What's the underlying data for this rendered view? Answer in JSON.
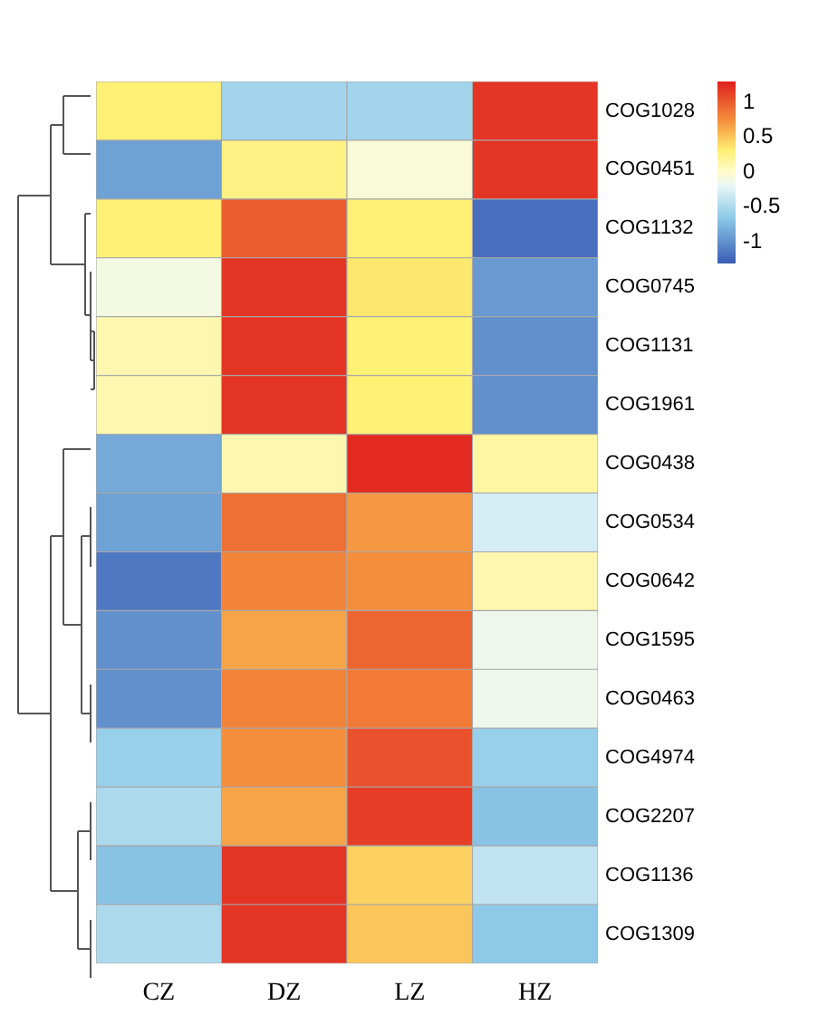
{
  "chart_data": {
    "type": "heatmap",
    "categories": [
      "CZ",
      "DZ",
      "LZ",
      "HZ"
    ],
    "y_categories": [
      "COG1028",
      "COG0451",
      "COG1132",
      "COG0745",
      "COG1131",
      "COG1961",
      "COG0438",
      "COG0534",
      "COG0642",
      "COG1595",
      "COG0463",
      "COG4974",
      "COG2207",
      "COG1136",
      "COG1309"
    ],
    "cells": [
      [
        0.3,
        -0.55,
        -0.55,
        1.2
      ],
      [
        -0.9,
        0.25,
        -0.05,
        1.2
      ],
      [
        0.3,
        1.0,
        0.3,
        -1.2
      ],
      [
        -0.1,
        1.2,
        0.35,
        -0.95
      ],
      [
        0.1,
        1.2,
        0.3,
        -1.0
      ],
      [
        0.1,
        1.2,
        0.3,
        -1.0
      ],
      [
        -0.85,
        0.1,
        1.25,
        0.15
      ],
      [
        -0.9,
        0.9,
        0.7,
        -0.3
      ],
      [
        -1.15,
        0.8,
        0.75,
        0.1
      ],
      [
        -1.0,
        0.65,
        0.95,
        -0.15
      ],
      [
        -1.0,
        0.8,
        0.85,
        -0.15
      ],
      [
        -0.6,
        0.75,
        1.05,
        -0.6
      ],
      [
        -0.5,
        0.65,
        1.15,
        -0.7
      ],
      [
        -0.7,
        1.2,
        0.45,
        -0.4
      ],
      [
        -0.5,
        1.2,
        0.5,
        -0.65
      ]
    ],
    "clim": [
      -1.3,
      1.3
    ],
    "cticks": [
      1,
      0.5,
      0,
      -0.5,
      -1
    ]
  }
}
